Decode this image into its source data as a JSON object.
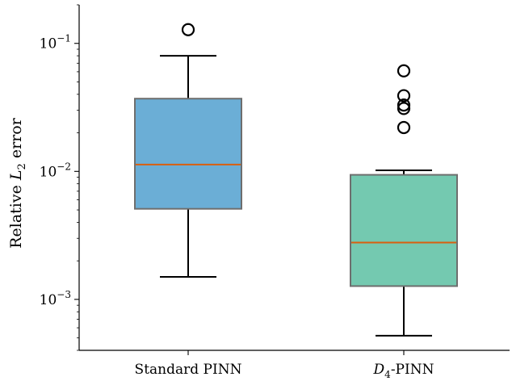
{
  "chart_data": {
    "type": "box",
    "ylabel_prefix": "Relative ",
    "ylabel_var": "L",
    "ylabel_sub": "2",
    "ylabel_suffix": " error",
    "yscale": "log",
    "ylim": [
      0.0004,
      0.2
    ],
    "yticks": [
      {
        "value": 0.1,
        "base": "10",
        "exp": "−1"
      },
      {
        "value": 0.01,
        "base": "10",
        "exp": "−2"
      },
      {
        "value": 0.001,
        "base": "10",
        "exp": "−3"
      }
    ],
    "categories": [
      {
        "label_var": "",
        "label_sub": "",
        "label_rest": "Standard PINN"
      },
      {
        "label_var": "D",
        "label_sub": "4",
        "label_rest": "-PINN"
      }
    ],
    "boxes": [
      {
        "whisker_low": 0.0015,
        "q1": 0.0051,
        "median": 0.0113,
        "q3": 0.037,
        "whisker_high": 0.08,
        "fliers": [
          0.128
        ],
        "color": "#6BAED6"
      },
      {
        "whisker_low": 0.00052,
        "q1": 0.00127,
        "median": 0.00278,
        "q3": 0.0094,
        "whisker_high": 0.0102,
        "fliers": [
          0.022,
          0.031,
          0.033,
          0.039,
          0.061
        ],
        "color": "#74C9B0"
      }
    ],
    "median_color": "#D95F0E",
    "box_edge_color": "#6E6E6E"
  }
}
